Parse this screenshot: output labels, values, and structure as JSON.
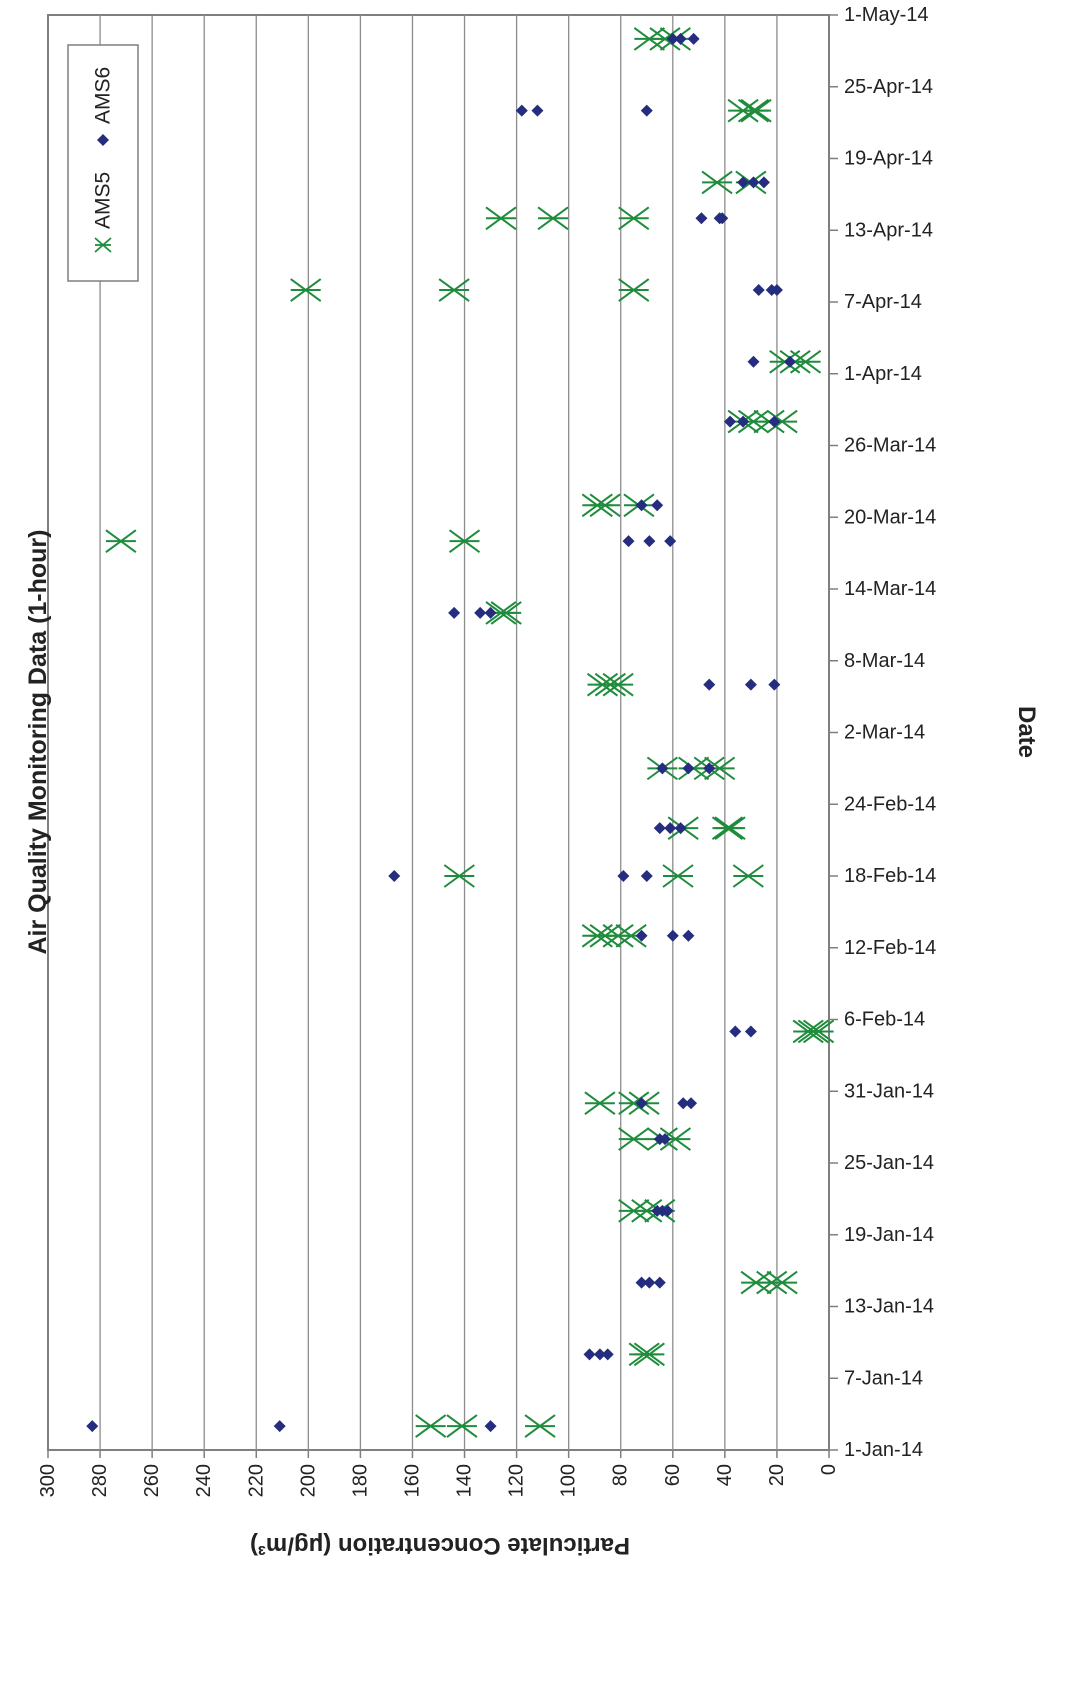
{
  "chart_data": {
    "type": "scatter",
    "title": "Air Quality Monitoring Data (1-hour)",
    "xlabel": "Date",
    "ylabel": "Particulate Concentration (μg/m³)",
    "x_ticks": [
      "1-Jan-14",
      "7-Jan-14",
      "13-Jan-14",
      "19-Jan-14",
      "25-Jan-14",
      "31-Jan-14",
      "6-Feb-14",
      "12-Feb-14",
      "18-Feb-14",
      "24-Feb-14",
      "2-Mar-14",
      "8-Mar-14",
      "14-Mar-14",
      "20-Mar-14",
      "26-Mar-14",
      "1-Apr-14",
      "7-Apr-14",
      "13-Apr-14",
      "19-Apr-14",
      "25-Apr-14",
      "1-May-14"
    ],
    "y_ticks": [
      "0",
      "20",
      "40",
      "60",
      "80",
      "100",
      "120",
      "140",
      "160",
      "180",
      "200",
      "220",
      "240",
      "260",
      "280",
      "300"
    ],
    "ylim": [
      0,
      300
    ],
    "grid": true,
    "legend_position": "top-left",
    "series": [
      {
        "name": "AMS5",
        "marker": "asterisk",
        "color": "#1f8c3c",
        "points": [
          [
            "2014-01-03",
            153
          ],
          [
            "2014-01-03",
            141
          ],
          [
            "2014-01-03",
            111
          ],
          [
            "2014-01-09",
            71
          ],
          [
            "2014-01-09",
            69
          ],
          [
            "2014-01-15",
            28
          ],
          [
            "2014-01-15",
            22
          ],
          [
            "2014-01-15",
            18
          ],
          [
            "2014-01-21",
            75
          ],
          [
            "2014-01-21",
            70
          ],
          [
            "2014-01-21",
            65
          ],
          [
            "2014-01-27",
            75
          ],
          [
            "2014-01-27",
            64
          ],
          [
            "2014-01-27",
            59
          ],
          [
            "2014-01-30",
            88
          ],
          [
            "2014-01-30",
            75
          ],
          [
            "2014-01-30",
            71
          ],
          [
            "2014-02-05",
            8
          ],
          [
            "2014-02-05",
            6
          ],
          [
            "2014-02-05",
            4
          ],
          [
            "2014-02-13",
            89
          ],
          [
            "2014-02-13",
            86
          ],
          [
            "2014-02-13",
            81
          ],
          [
            "2014-02-13",
            76
          ],
          [
            "2014-02-18",
            142
          ],
          [
            "2014-02-18",
            58
          ],
          [
            "2014-02-18",
            31
          ],
          [
            "2014-02-22",
            56
          ],
          [
            "2014-02-22",
            39
          ],
          [
            "2014-02-22",
            38
          ],
          [
            "2014-02-27",
            64
          ],
          [
            "2014-02-27",
            52
          ],
          [
            "2014-02-27",
            46
          ],
          [
            "2014-02-27",
            42
          ],
          [
            "2014-03-06",
            87
          ],
          [
            "2014-03-06",
            84
          ],
          [
            "2014-03-06",
            81
          ],
          [
            "2014-03-12",
            126
          ],
          [
            "2014-03-12",
            124
          ],
          [
            "2014-03-18",
            272
          ],
          [
            "2014-03-18",
            140
          ],
          [
            "2014-03-21",
            89
          ],
          [
            "2014-03-21",
            86
          ],
          [
            "2014-03-21",
            73
          ],
          [
            "2014-03-28",
            33
          ],
          [
            "2014-03-28",
            29
          ],
          [
            "2014-03-28",
            23
          ],
          [
            "2014-03-28",
            18
          ],
          [
            "2014-04-02",
            17
          ],
          [
            "2014-04-02",
            13
          ],
          [
            "2014-04-02",
            9
          ],
          [
            "2014-04-08",
            201
          ],
          [
            "2014-04-08",
            144
          ],
          [
            "2014-04-08",
            75
          ],
          [
            "2014-04-14",
            126
          ],
          [
            "2014-04-14",
            106
          ],
          [
            "2014-04-14",
            75
          ],
          [
            "2014-04-17",
            43
          ],
          [
            "2014-04-17",
            30
          ],
          [
            "2014-04-23",
            33
          ],
          [
            "2014-04-23",
            29
          ],
          [
            "2014-04-23",
            28
          ],
          [
            "2014-04-29",
            69
          ],
          [
            "2014-04-29",
            63
          ],
          [
            "2014-04-29",
            59
          ]
        ]
      },
      {
        "name": "AMS6",
        "marker": "diamond",
        "color": "#252d7e",
        "points": [
          [
            "2014-01-03",
            283
          ],
          [
            "2014-01-03",
            211
          ],
          [
            "2014-01-03",
            130
          ],
          [
            "2014-01-09",
            92
          ],
          [
            "2014-01-09",
            88
          ],
          [
            "2014-01-09",
            85
          ],
          [
            "2014-01-15",
            72
          ],
          [
            "2014-01-15",
            69
          ],
          [
            "2014-01-15",
            65
          ],
          [
            "2014-01-21",
            66
          ],
          [
            "2014-01-21",
            64
          ],
          [
            "2014-01-21",
            62
          ],
          [
            "2014-01-27",
            65
          ],
          [
            "2014-01-27",
            63
          ],
          [
            "2014-01-30",
            72
          ],
          [
            "2014-01-30",
            56
          ],
          [
            "2014-01-30",
            53
          ],
          [
            "2014-02-05",
            36
          ],
          [
            "2014-02-05",
            30
          ],
          [
            "2014-02-13",
            72
          ],
          [
            "2014-02-13",
            60
          ],
          [
            "2014-02-13",
            54
          ],
          [
            "2014-02-18",
            167
          ],
          [
            "2014-02-18",
            79
          ],
          [
            "2014-02-18",
            70
          ],
          [
            "2014-02-22",
            65
          ],
          [
            "2014-02-22",
            61
          ],
          [
            "2014-02-22",
            57
          ],
          [
            "2014-02-27",
            64
          ],
          [
            "2014-02-27",
            54
          ],
          [
            "2014-02-27",
            46
          ],
          [
            "2014-03-06",
            46
          ],
          [
            "2014-03-06",
            30
          ],
          [
            "2014-03-06",
            21
          ],
          [
            "2014-03-12",
            144
          ],
          [
            "2014-03-12",
            134
          ],
          [
            "2014-03-12",
            130
          ],
          [
            "2014-03-18",
            77
          ],
          [
            "2014-03-18",
            69
          ],
          [
            "2014-03-18",
            61
          ],
          [
            "2014-03-21",
            72
          ],
          [
            "2014-03-21",
            66
          ],
          [
            "2014-03-28",
            38
          ],
          [
            "2014-03-28",
            33
          ],
          [
            "2014-03-28",
            21
          ],
          [
            "2014-04-02",
            29
          ],
          [
            "2014-04-02",
            15
          ],
          [
            "2014-04-08",
            27
          ],
          [
            "2014-04-08",
            22
          ],
          [
            "2014-04-08",
            20
          ],
          [
            "2014-04-14",
            49
          ],
          [
            "2014-04-14",
            42
          ],
          [
            "2014-04-14",
            41
          ],
          [
            "2014-04-17",
            33
          ],
          [
            "2014-04-17",
            29
          ],
          [
            "2014-04-17",
            25
          ],
          [
            "2014-04-23",
            118
          ],
          [
            "2014-04-23",
            112
          ],
          [
            "2014-04-23",
            70
          ],
          [
            "2014-04-29",
            60
          ],
          [
            "2014-04-29",
            57
          ],
          [
            "2014-04-29",
            52
          ]
        ]
      }
    ]
  }
}
